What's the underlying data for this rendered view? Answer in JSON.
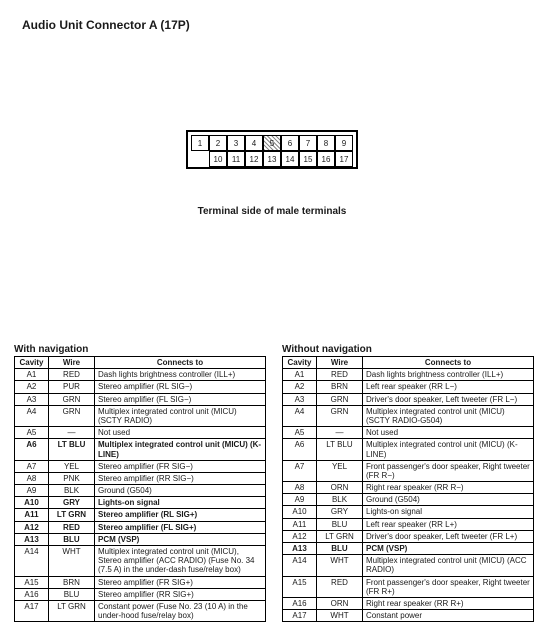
{
  "title": "Audio Unit Connector A (17P)",
  "caption": "Terminal side of male terminals",
  "connector": {
    "row1": [
      "1",
      "2",
      "3",
      "4",
      "5",
      "6",
      "7",
      "8",
      "9"
    ],
    "row1_shaded": [
      false,
      false,
      false,
      false,
      true,
      false,
      false,
      false,
      false
    ],
    "row2": [
      "10",
      "11",
      "12",
      "13",
      "14",
      "15",
      "16",
      "17"
    ]
  },
  "left": {
    "heading": "With navigation",
    "columns": [
      "Cavity",
      "Wire",
      "Connects to"
    ],
    "rows": [
      {
        "cavity": "A1",
        "wire": "RED",
        "conn": "Dash lights brightness controller (ILL+)"
      },
      {
        "cavity": "A2",
        "wire": "PUR",
        "conn": "Stereo amplifier (RL SIG−)"
      },
      {
        "cavity": "A3",
        "wire": "GRN",
        "conn": "Stereo amplifier (FL SIG−)"
      },
      {
        "cavity": "A4",
        "wire": "GRN",
        "conn": "Multiplex integrated control unit (MICU) (SCTY RADIO)"
      },
      {
        "cavity": "A5",
        "wire": "—",
        "conn": "Not used"
      },
      {
        "cavity": "A6",
        "wire": "LT BLU",
        "conn": "Multiplex integrated control unit (MICU) (K-LINE)",
        "bold": true
      },
      {
        "cavity": "A7",
        "wire": "YEL",
        "conn": "Stereo amplifier (FR SIG−)"
      },
      {
        "cavity": "A8",
        "wire": "PNK",
        "conn": "Stereo amplifier (RR SIG−)"
      },
      {
        "cavity": "A9",
        "wire": "BLK",
        "conn": "Ground (G504)"
      },
      {
        "cavity": "A10",
        "wire": "GRY",
        "conn": "Lights-on signal",
        "bold": true
      },
      {
        "cavity": "A11",
        "wire": "LT GRN",
        "conn": "Stereo amplifier (RL SIG+)",
        "bold": true
      },
      {
        "cavity": "A12",
        "wire": "RED",
        "conn": "Stereo amplifier (FL SIG+)",
        "bold": true
      },
      {
        "cavity": "A13",
        "wire": "BLU",
        "conn": "PCM (VSP)",
        "bold": true
      },
      {
        "cavity": "A14",
        "wire": "WHT",
        "conn": "Multiplex integrated control unit (MICU), Stereo amplifier (ACC RADIO) (Fuse No. 34 (7.5 A) in the under-dash fuse/relay box)"
      },
      {
        "cavity": "A15",
        "wire": "BRN",
        "conn": "Stereo amplifier (FR SIG+)"
      },
      {
        "cavity": "A16",
        "wire": "BLU",
        "conn": "Stereo amplifier (RR SIG+)"
      },
      {
        "cavity": "A17",
        "wire": "LT GRN",
        "conn": "Constant power (Fuse No. 23 (10 A) in the under-hood fuse/relay box)"
      }
    ]
  },
  "right": {
    "heading": "Without navigation",
    "columns": [
      "Cavity",
      "Wire",
      "Connects to"
    ],
    "rows": [
      {
        "cavity": "A1",
        "wire": "RED",
        "conn": "Dash lights brightness controller (ILL+)"
      },
      {
        "cavity": "A2",
        "wire": "BRN",
        "conn": "Left rear speaker (RR L−)"
      },
      {
        "cavity": "A3",
        "wire": "GRN",
        "conn": "Driver's door speaker, Left tweeter (FR L−)"
      },
      {
        "cavity": "A4",
        "wire": "GRN",
        "conn": "Multiplex integrated control unit (MICU) (SCTY RADIO-G504)"
      },
      {
        "cavity": "A5",
        "wire": "—",
        "conn": "Not used"
      },
      {
        "cavity": "A6",
        "wire": "LT BLU",
        "conn": "Multiplex integrated control unit (MICU) (K-LINE)"
      },
      {
        "cavity": "A7",
        "wire": "YEL",
        "conn": "Front passenger's door speaker, Right tweeter (FR R−)"
      },
      {
        "cavity": "A8",
        "wire": "ORN",
        "conn": "Right rear speaker (RR R−)"
      },
      {
        "cavity": "A9",
        "wire": "BLK",
        "conn": "Ground (G504)"
      },
      {
        "cavity": "A10",
        "wire": "GRY",
        "conn": "Lights-on signal"
      },
      {
        "cavity": "A11",
        "wire": "BLU",
        "conn": "Left rear speaker (RR L+)"
      },
      {
        "cavity": "A12",
        "wire": "LT GRN",
        "conn": "Driver's door speaker, Left tweeter (FR L+)"
      },
      {
        "cavity": "A13",
        "wire": "BLU",
        "conn": "PCM (VSP)",
        "bold": true
      },
      {
        "cavity": "A14",
        "wire": "WHT",
        "conn": "Multiplex integrated control unit (MICU) (ACC RADIO)"
      },
      {
        "cavity": "A15",
        "wire": "RED",
        "conn": "Front passenger's door speaker, Right tweeter (FR R+)"
      },
      {
        "cavity": "A16",
        "wire": "ORN",
        "conn": "Right rear speaker (RR R+)"
      },
      {
        "cavity": "A17",
        "wire": "WHT",
        "conn": "Constant power"
      }
    ]
  }
}
